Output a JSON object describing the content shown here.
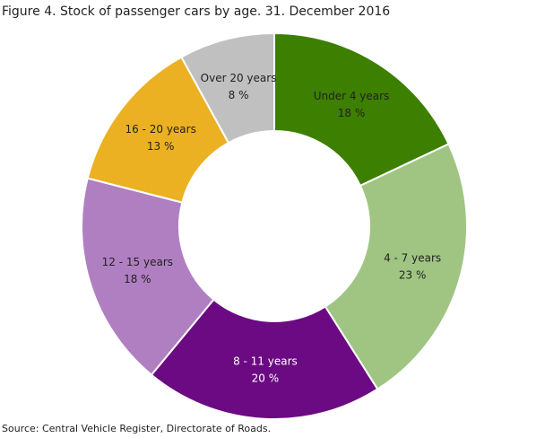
{
  "chart_data": {
    "type": "donut",
    "title": "Figure 4. Stock of passenger cars by age. 31. December 2016",
    "source": "Source: Central Vehicle Register, Directorate of Roads.",
    "categories": [
      "Under 4 years",
      "4 - 7 years",
      "8 - 11 years",
      "12 - 15 years",
      "16 - 20 years",
      "Over 20 years"
    ],
    "values": [
      18,
      23,
      20,
      18,
      13,
      8
    ],
    "value_labels": [
      "18 %",
      "23 %",
      "20 %",
      "18 %",
      "13 %",
      "8 %"
    ],
    "colors": [
      "#3d7f00",
      "#a0c583",
      "#6b0a82",
      "#b07fc1",
      "#ecb122",
      "#c0c0c0"
    ]
  }
}
